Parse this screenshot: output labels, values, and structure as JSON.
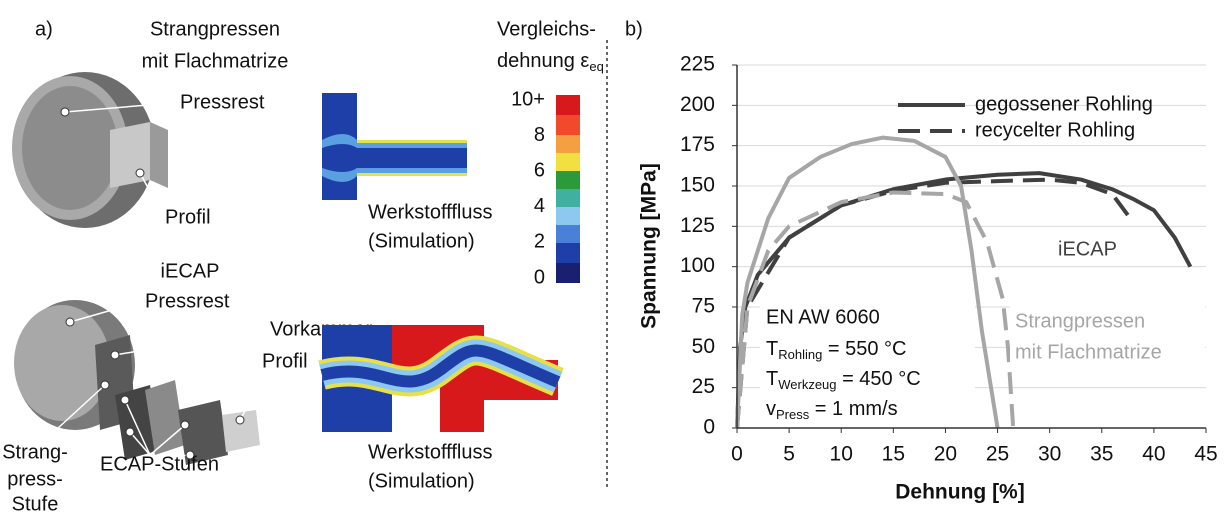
{
  "panel_a": {
    "label": "a)",
    "extrusion_title": [
      "Strangpressen",
      "mit Flachmatrize"
    ],
    "colorbar_title": {
      "lines": [
        "Vergleichs-",
        "dehnung ε"
      ],
      "subscript": "eq"
    },
    "colorbar_labels": [
      {
        "value": 10,
        "label": "10+"
      },
      8,
      6,
      4,
      2,
      0
    ],
    "extrusion_labels": {
      "pressrest": "Pressrest",
      "profil": "Profil"
    },
    "sim_caption": [
      "Werkstofffluss",
      "(Simulation)"
    ],
    "iecap_title": "iECAP",
    "iecap_labels": {
      "pressrest": "Pressrest",
      "vorkammer": "Vorkammer",
      "profil": "Profil",
      "strangpress_stufe": [
        "Strang-",
        "press-",
        "Stufe"
      ],
      "ecap_stufen": "ECAP-Stufen"
    },
    "sim_caption_2": [
      "Werkstofffluss",
      "(Simulation)"
    ]
  },
  "chart_data": {
    "type": "line",
    "label": "b)",
    "x_label": "Dehnung  [%]",
    "y_label": "Spannung [MPa]",
    "xlim": [
      0,
      45
    ],
    "xticks": [
      0,
      5,
      10,
      15,
      20,
      25,
      30,
      35,
      40,
      45
    ],
    "ylim": [
      0,
      225
    ],
    "yticks": [
      0,
      25,
      50,
      75,
      100,
      125,
      150,
      175,
      200,
      225
    ],
    "grid": true,
    "legend_position": "upper right",
    "series": [
      {
        "name": "gegossener Rohling",
        "color": "#404040",
        "dash": "solid",
        "x": [
          0,
          0.3,
          0.8,
          2,
          5,
          10,
          15,
          20,
          25,
          29,
          33,
          36,
          38,
          40,
          42,
          43.5
        ],
        "values": [
          0,
          50,
          75,
          95,
          118,
          138,
          148,
          154,
          157,
          158,
          154,
          148,
          142,
          135,
          118,
          100
        ]
      },
      {
        "name": "recycelter Rohling",
        "color": "#404040",
        "dash": "dashed",
        "x": [
          0,
          1,
          5,
          10,
          15,
          20,
          25,
          30,
          33,
          36,
          37.5
        ],
        "values": [
          0,
          75,
          118,
          138,
          147,
          152,
          153,
          154,
          152,
          145,
          132
        ]
      },
      {
        "color": "#a6a6a6",
        "dash": "solid",
        "x": [
          0,
          0.5,
          1,
          3,
          5,
          8,
          11,
          14,
          17,
          20,
          21.5,
          22.5,
          23.5,
          24.5,
          25
        ],
        "values": [
          0,
          70,
          90,
          130,
          155,
          168,
          176,
          180,
          178,
          168,
          150,
          110,
          60,
          20,
          0
        ]
      },
      {
        "color": "#a6a6a6",
        "dash": "dashed",
        "x": [
          0,
          1,
          3,
          5,
          10,
          15,
          20,
          22,
          24,
          25.5,
          26,
          26.5
        ],
        "values": [
          0,
          75,
          110,
          125,
          140,
          146,
          145,
          140,
          115,
          80,
          50,
          0
        ]
      }
    ],
    "annotations": {
      "process_1": "iECAP",
      "process_2": [
        "Strangpressen",
        "mit Flachmatrize"
      ],
      "material": "EN AW 6060",
      "conditions": [
        {
          "symbol": "T",
          "subscript": "Rohling",
          "text": " = 550 °C"
        },
        {
          "symbol": "T",
          "subscript": "Werkzeug",
          "text": " = 450 °C"
        },
        {
          "symbol": "v",
          "subscript": "Press",
          "text": " = 1 mm/s"
        }
      ]
    }
  }
}
